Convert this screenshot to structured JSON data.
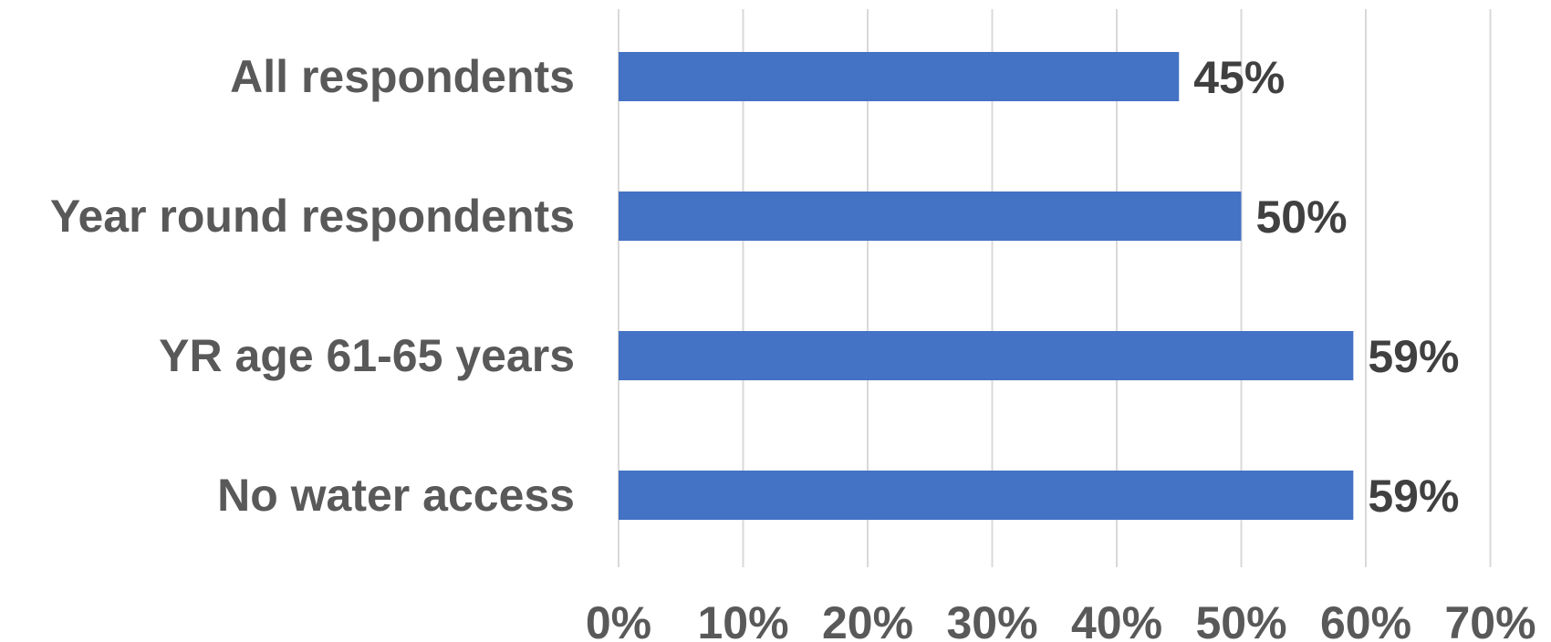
{
  "chart_data": {
    "type": "bar",
    "orientation": "horizontal",
    "title": "",
    "categories": [
      "All respondents",
      "Year round respondents",
      "YR age 61-65 years",
      "No water access"
    ],
    "values": [
      45,
      50,
      59,
      59
    ],
    "data_labels": [
      "45%",
      "50%",
      "59%",
      "59%"
    ],
    "xlim": [
      0,
      70
    ],
    "x_ticks": [
      0,
      10,
      20,
      30,
      40,
      50,
      60,
      70
    ],
    "x_tick_labels": [
      "0%",
      "10%",
      "20%",
      "30%",
      "40%",
      "50%",
      "60%",
      "70%"
    ],
    "grid": true,
    "bar_color": "#4472C4",
    "gridline_color": "#D9D9D9",
    "label_color": "#595959",
    "data_label_color": "#404040"
  }
}
